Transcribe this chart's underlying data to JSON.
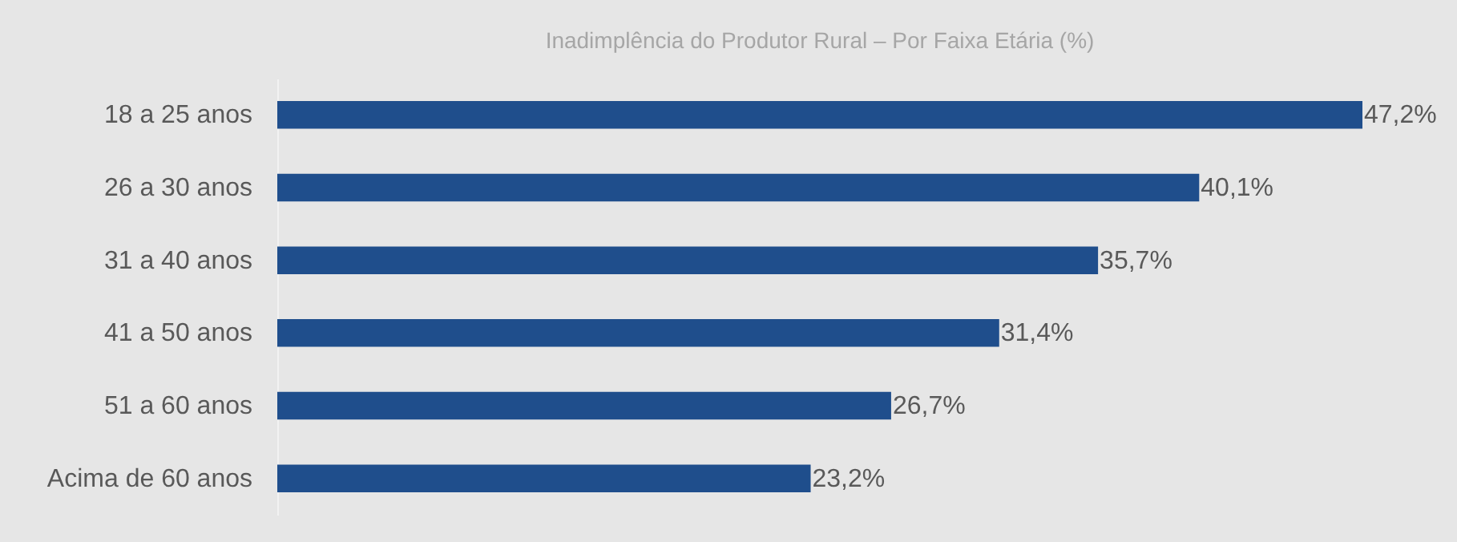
{
  "chart_data": {
    "type": "bar",
    "orientation": "horizontal",
    "title": "Inadimplência  do Produtor Rural – Por Faixa Etária (%)",
    "categories": [
      "18 a 25 anos",
      "26 a 30 anos",
      "31 a 40 anos",
      "41 a 50 anos",
      "51 a 60 anos",
      "Acima de 60 anos"
    ],
    "values": [
      47.2,
      40.1,
      35.7,
      31.4,
      26.7,
      23.2
    ],
    "value_labels": [
      "47,2%",
      "40,1%",
      "35,7%",
      "31,4%",
      "26,7%",
      "23,2%"
    ],
    "color": "#1f4e8c",
    "grid": false
  }
}
